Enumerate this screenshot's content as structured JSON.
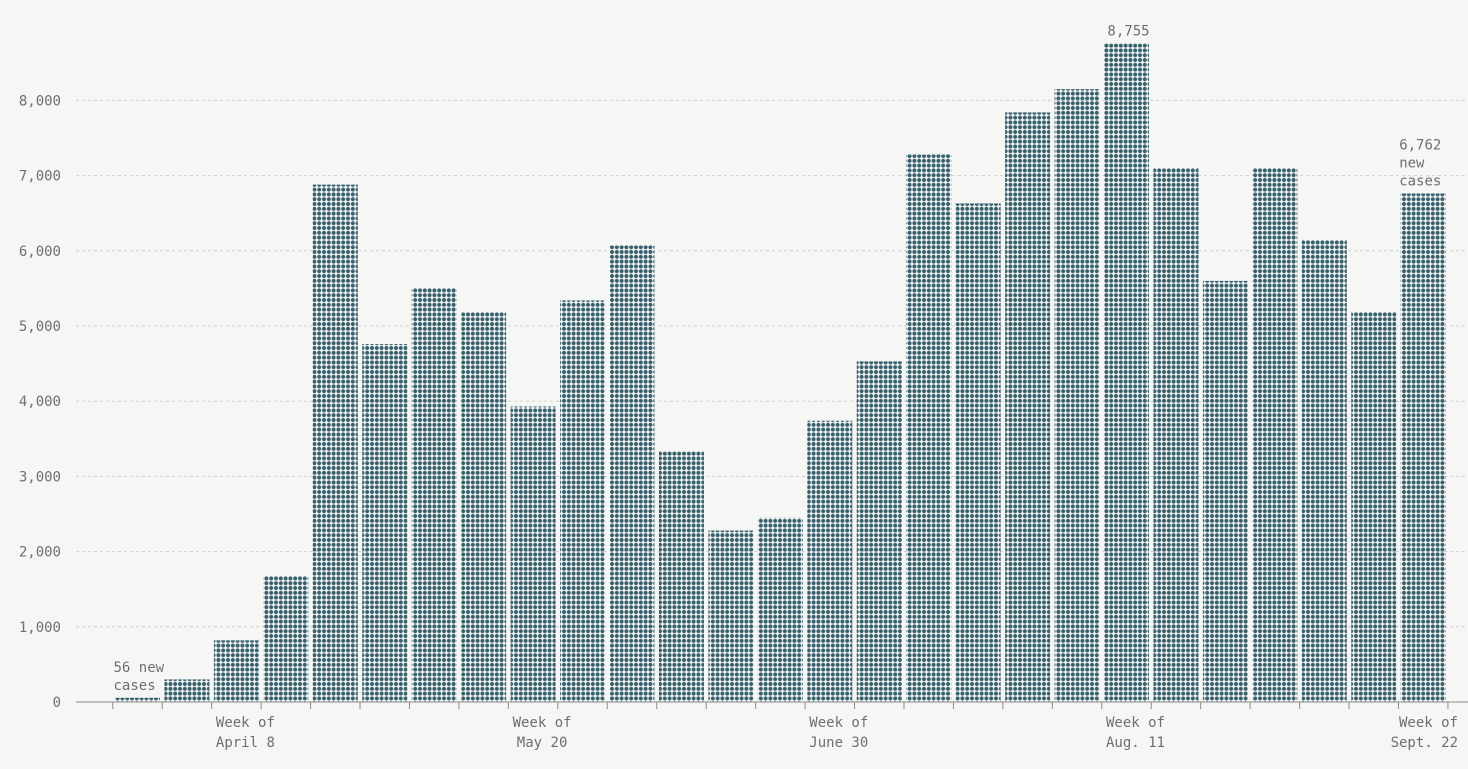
{
  "chart_data": {
    "type": "bar",
    "mark_style": "dot-stacked columns",
    "title": "",
    "xlabel": "",
    "ylabel": "",
    "ylim": [
      0,
      8900
    ],
    "y_ticks": [
      {
        "value": 0,
        "label": "0"
      },
      {
        "value": 1000,
        "label": "1,000"
      },
      {
        "value": 2000,
        "label": "2,000"
      },
      {
        "value": 3000,
        "label": "3,000"
      },
      {
        "value": 4000,
        "label": "4,000"
      },
      {
        "value": 5000,
        "label": "5,000"
      },
      {
        "value": 6000,
        "label": "6,000"
      },
      {
        "value": 7000,
        "label": "7,000"
      },
      {
        "value": 8000,
        "label": "8,000"
      }
    ],
    "grid": true,
    "legend": "none",
    "bar_color": "#35606e",
    "x_labels": [
      {
        "index": 2,
        "line1": "Week of",
        "line2": "April 8"
      },
      {
        "index": 8,
        "line1": "Week of",
        "line2": "May 20"
      },
      {
        "index": 14,
        "line1": "Week of",
        "line2": "June 30"
      },
      {
        "index": 20,
        "line1": "Week of",
        "line2": "Aug. 11"
      },
      {
        "index": 26,
        "line1": "Week of",
        "line2": "Sept. 22"
      }
    ],
    "values": [
      56,
      300,
      820,
      1680,
      6880,
      4760,
      5510,
      5180,
      3930,
      5340,
      6070,
      3330,
      2280,
      2450,
      3740,
      4530,
      7280,
      6630,
      7840,
      8150,
      8755,
      7100,
      5600,
      7100,
      6150,
      5190,
      6762
    ],
    "annotations": [
      {
        "index": 0,
        "lines": [
          "56 new",
          "cases"
        ]
      },
      {
        "index": 20,
        "lines": [
          "8,755"
        ]
      },
      {
        "index": 26,
        "lines": [
          "6,762",
          "new",
          "cases"
        ]
      }
    ]
  }
}
